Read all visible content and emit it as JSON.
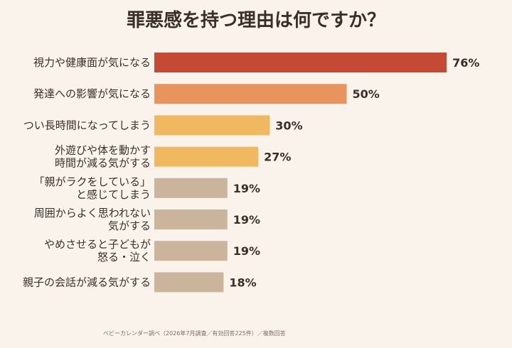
{
  "title": "罪悪感を持つ理由は何ですか？",
  "source": "ベビーカレンダー調べ（2026年7月調査／有効回答225件）／複数回答",
  "colors": {
    "background": "#faf3ec",
    "text": "#3a2f28",
    "red": "#c44a35",
    "orange": "#e9945d",
    "yellow": "#f0b85f",
    "tan": "#cbb49c"
  },
  "chart_data": {
    "type": "bar",
    "orientation": "horizontal",
    "title": "罪悪感を持つ理由は何ですか？",
    "unit": "%",
    "categories": [
      [
        "視力や健康面が気になる"
      ],
      [
        "発達への影響が気になる"
      ],
      [
        "つい長時間になってしまう"
      ],
      [
        "外遊びや体を動かす",
        "時間が減る気がする"
      ],
      [
        "「親がラクをしている」",
        "と感じてしまう"
      ],
      [
        "周囲からよく思われない",
        "気がする"
      ],
      [
        "やめさせると子どもが",
        "怒る・泣く"
      ],
      [
        "親子の会話が減る気がする"
      ]
    ],
    "values": [
      76,
      50,
      30,
      27,
      19,
      19,
      19,
      18
    ],
    "value_labels": [
      "76%",
      "50%",
      "30%",
      "27%",
      "19%",
      "19%",
      "19%",
      "18%"
    ],
    "bar_colors": [
      "#c44a35",
      "#e9945d",
      "#f0b85f",
      "#f0b85f",
      "#cbb49c",
      "#cbb49c",
      "#cbb49c",
      "#cbb49c"
    ],
    "xlim": [
      0,
      100
    ],
    "grid": false,
    "legend": false
  }
}
